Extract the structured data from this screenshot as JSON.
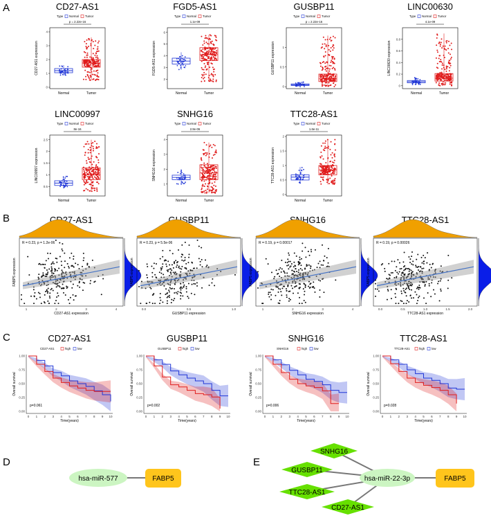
{
  "panel_labels": {
    "A": "A",
    "B": "B",
    "C": "C",
    "D": "D",
    "E": "E"
  },
  "colors": {
    "normal": "#1f35d6",
    "tumor": "#e01c1c",
    "point": "#111111",
    "density": "#f0a000",
    "density_right": "#0a1ee8",
    "reg": "#4472c4",
    "node_mirna": "#ccf5c2",
    "node_lnc": "#66e000",
    "node_gene": "#ffc51c"
  },
  "chart_data": [
    {
      "id": "A",
      "type": "boxplot",
      "legend": {
        "title": "Type",
        "items": [
          "Normal",
          "Tumor"
        ]
      },
      "panels": [
        {
          "title": "CD27-AS1",
          "ylabel": "CD27-AS1 expression",
          "categories": [
            "Normal",
            "Tumor"
          ],
          "pvalue": "p = 2.22e-16",
          "ylim": [
            -0.1,
            4.3
          ],
          "yticks": [
            0,
            1,
            2,
            3,
            4
          ],
          "boxes": [
            {
              "q1": 1.05,
              "median": 1.2,
              "q3": 1.35,
              "lo": 0.85,
              "hi": 1.6
            },
            {
              "q1": 1.45,
              "median": 1.75,
              "q3": 2.0,
              "lo": 0.5,
              "hi": 3.6
            }
          ]
        },
        {
          "title": "FGD5-AS1",
          "ylabel": "FGD5-AS1 expression",
          "categories": [
            "Normal",
            "Tumor"
          ],
          "pvalue": "1.1e-09",
          "ylim": [
            1.2,
            6.4
          ],
          "yticks": [
            2,
            3,
            4,
            5,
            6
          ],
          "boxes": [
            {
              "q1": 3.3,
              "median": 3.55,
              "q3": 3.8,
              "lo": 2.8,
              "hi": 4.3
            },
            {
              "q1": 3.6,
              "median": 4.1,
              "q3": 4.7,
              "lo": 1.8,
              "hi": 5.8
            }
          ]
        },
        {
          "title": "GUSBP11",
          "ylabel": "GUSBP11 expression",
          "categories": [
            "Normal",
            "Tumor"
          ],
          "pvalue": "p = 2.22e-16",
          "ylim": [
            -0.05,
            1.5
          ],
          "yticks": [
            0.0,
            0.5,
            1.0
          ],
          "boxes": [
            {
              "q1": 0.03,
              "median": 0.05,
              "q3": 0.07,
              "lo": 0.0,
              "hi": 0.12
            },
            {
              "q1": 0.13,
              "median": 0.2,
              "q3": 0.32,
              "lo": 0.0,
              "hi": 1.3
            }
          ]
        },
        {
          "title": "LINC00630",
          "ylabel": "LINC00630 expression",
          "categories": [
            "Normal",
            "Tumor"
          ],
          "pvalue": "4.1e-09",
          "ylim": [
            -0.05,
            1.0
          ],
          "yticks": [
            0.0,
            0.2,
            0.4,
            0.6,
            0.8
          ],
          "boxes": [
            {
              "q1": 0.05,
              "median": 0.07,
              "q3": 0.09,
              "lo": 0.02,
              "hi": 0.14
            },
            {
              "q1": 0.08,
              "median": 0.13,
              "q3": 0.21,
              "lo": 0.0,
              "hi": 0.9
            }
          ]
        },
        {
          "title": "LINC00997",
          "ylabel": "LINC00997 expression",
          "categories": [
            "Normal",
            "Tumor"
          ],
          "pvalue": "8e-16",
          "ylim": [
            0.1,
            2.7
          ],
          "yticks": [
            0.5,
            1.0,
            1.5,
            2.0,
            2.5
          ],
          "boxes": [
            {
              "q1": 0.55,
              "median": 0.65,
              "q3": 0.75,
              "lo": 0.45,
              "hi": 0.95
            },
            {
              "q1": 0.8,
              "median": 1.0,
              "q3": 1.3,
              "lo": 0.3,
              "hi": 2.5
            }
          ]
        },
        {
          "title": "SNHG16",
          "ylabel": "SNHG16 expression",
          "categories": [
            "Normal",
            "Tumor"
          ],
          "pvalue": "2.9e-06",
          "ylim": [
            0.2,
            4.3
          ],
          "yticks": [
            1,
            2,
            3,
            4
          ],
          "boxes": [
            {
              "q1": 1.3,
              "median": 1.45,
              "q3": 1.6,
              "lo": 1.0,
              "hi": 2.0
            },
            {
              "q1": 1.3,
              "median": 1.75,
              "q3": 2.3,
              "lo": 0.4,
              "hi": 3.8
            }
          ]
        },
        {
          "title": "TTC28-AS1",
          "ylabel": "TTC28-AS1 expression",
          "categories": [
            "Normal",
            "Tumor"
          ],
          "pvalue": "1.6e-11",
          "ylim": [
            -0.05,
            2.05
          ],
          "yticks": [
            0.0,
            0.5,
            1.0,
            1.5,
            2.0
          ],
          "boxes": [
            {
              "q1": 0.5,
              "median": 0.6,
              "q3": 0.68,
              "lo": 0.38,
              "hi": 0.95
            },
            {
              "q1": 0.68,
              "median": 0.85,
              "q3": 1.0,
              "lo": 0.35,
              "hi": 1.9
            }
          ]
        }
      ]
    },
    {
      "id": "B",
      "type": "scatter",
      "ylabel": "FABP5 expression",
      "panels": [
        {
          "title": "CD27-AS1",
          "xlabel": "CD27-AS1 expression",
          "stat": "R = 0.23, p = 1.2e-06",
          "xticks": [
            "1",
            "2",
            "3",
            "4"
          ],
          "xrange": [
            0.3,
            4.4
          ]
        },
        {
          "title": "GUSBP11",
          "xlabel": "GUSBP11 expression",
          "stat": "R = 0.23, p = 5.5e-06",
          "xticks": [
            "0.0",
            "0.5",
            "1.0"
          ],
          "xrange": [
            -0.05,
            1.35
          ]
        },
        {
          "title": "SNHG16",
          "xlabel": "SNHG16 expression",
          "stat": "R = 0.19, p = 0.00017",
          "xticks": [
            "1",
            "2",
            "3",
            "4"
          ],
          "xrange": [
            0.3,
            4.1
          ]
        },
        {
          "title": "TTC28-AS1",
          "xlabel": "TTC28-AS1 expression",
          "stat": "R = 0.19, p = 0.00026",
          "xticks": [
            "0.0",
            "0.5",
            "1.0",
            "1.5",
            "2.0"
          ],
          "xrange": [
            -0.05,
            2.05
          ]
        }
      ]
    },
    {
      "id": "C",
      "type": "line",
      "ylabel": "Overall survival",
      "xlabel": "Time(years)",
      "xticks": [
        "0",
        "1",
        "2",
        "3",
        "4",
        "5",
        "6",
        "7",
        "8",
        "9",
        "10"
      ],
      "yticks": [
        "0.00",
        "0.25",
        "0.50",
        "0.75",
        "1.00"
      ],
      "legend_items": [
        "high",
        "low"
      ],
      "panels": [
        {
          "title": "CD27-AS1",
          "pvalue": "p=0.061",
          "high": [
            [
              0,
              1
            ],
            [
              1,
              0.85
            ],
            [
              2,
              0.72
            ],
            [
              3,
              0.6
            ],
            [
              4,
              0.52
            ],
            [
              5,
              0.46
            ],
            [
              6,
              0.42
            ],
            [
              7,
              0.38
            ],
            [
              8,
              0.36
            ],
            [
              9,
              0.36
            ],
            [
              10,
              0.36
            ]
          ],
          "low": [
            [
              0,
              1
            ],
            [
              1,
              0.92
            ],
            [
              2,
              0.82
            ],
            [
              3,
              0.7
            ],
            [
              4,
              0.64
            ],
            [
              5,
              0.55
            ],
            [
              6,
              0.5
            ],
            [
              7,
              0.45
            ],
            [
              8,
              0.37
            ],
            [
              9,
              0.3
            ],
            [
              10,
              0.18
            ]
          ]
        },
        {
          "title": "GUSBP11",
          "pvalue": "p=0.002",
          "high": [
            [
              0,
              1
            ],
            [
              1,
              0.82
            ],
            [
              2,
              0.62
            ],
            [
              3,
              0.48
            ],
            [
              4,
              0.44
            ],
            [
              5,
              0.38
            ],
            [
              6,
              0.32
            ],
            [
              7,
              0.3
            ],
            [
              8,
              0.26
            ],
            [
              9,
              0.05
            ]
          ],
          "low": [
            [
              0,
              1
            ],
            [
              1,
              0.93
            ],
            [
              2,
              0.85
            ],
            [
              3,
              0.73
            ],
            [
              4,
              0.66
            ],
            [
              5,
              0.6
            ],
            [
              6,
              0.55
            ],
            [
              7,
              0.5
            ],
            [
              8,
              0.38
            ],
            [
              9,
              0.28
            ],
            [
              10,
              0.28
            ]
          ]
        },
        {
          "title": "SNHG16",
          "pvalue": "p=0.006",
          "high": [
            [
              0,
              1
            ],
            [
              1,
              0.85
            ],
            [
              2,
              0.7
            ],
            [
              3,
              0.58
            ],
            [
              4,
              0.5
            ],
            [
              5,
              0.46
            ],
            [
              6,
              0.43
            ],
            [
              7,
              0.37
            ],
            [
              8,
              0.14
            ],
            [
              9,
              0.14
            ]
          ],
          "low": [
            [
              0,
              1
            ],
            [
              1,
              0.93
            ],
            [
              2,
              0.84
            ],
            [
              3,
              0.74
            ],
            [
              4,
              0.66
            ],
            [
              5,
              0.58
            ],
            [
              6,
              0.54
            ],
            [
              7,
              0.48
            ],
            [
              8,
              0.38
            ],
            [
              9,
              0.34
            ],
            [
              10,
              0.34
            ]
          ]
        },
        {
          "title": "TTC28-AS1",
          "pvalue": "p=0.028",
          "high": [
            [
              0,
              1
            ],
            [
              1,
              0.86
            ],
            [
              2,
              0.72
            ],
            [
              3,
              0.6
            ],
            [
              4,
              0.52
            ],
            [
              5,
              0.47
            ],
            [
              6,
              0.43
            ],
            [
              7,
              0.38
            ],
            [
              8,
              0.3
            ],
            [
              9,
              0.14
            ]
          ],
          "low": [
            [
              0,
              1
            ],
            [
              1,
              0.93
            ],
            [
              2,
              0.85
            ],
            [
              3,
              0.75
            ],
            [
              4,
              0.68
            ],
            [
              5,
              0.6
            ],
            [
              6,
              0.56
            ],
            [
              7,
              0.5
            ],
            [
              8,
              0.42
            ],
            [
              9,
              0.4
            ],
            [
              10,
              0.4
            ]
          ]
        }
      ]
    }
  ],
  "network_D": {
    "mirna": "hsa-miR-577",
    "gene": "FABP5"
  },
  "network_E": {
    "mirna": "hsa-miR-22-3p",
    "gene": "FABP5",
    "lncrnas": [
      "SNHG16",
      "GUSBP11",
      "TTC28-AS1",
      "CD27-AS1"
    ]
  }
}
